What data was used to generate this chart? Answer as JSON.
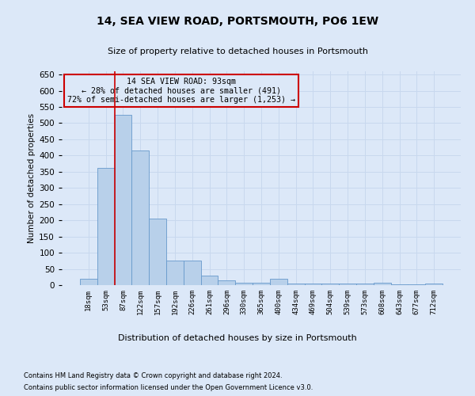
{
  "title": "14, SEA VIEW ROAD, PORTSMOUTH, PO6 1EW",
  "subtitle": "Size of property relative to detached houses in Portsmouth",
  "xlabel": "Distribution of detached houses by size in Portsmouth",
  "ylabel": "Number of detached properties",
  "footnote1": "Contains HM Land Registry data © Crown copyright and database right 2024.",
  "footnote2": "Contains public sector information licensed under the Open Government Licence v3.0.",
  "annotation_line1": "14 SEA VIEW ROAD: 93sqm",
  "annotation_line2": "← 28% of detached houses are smaller (491)",
  "annotation_line3": "72% of semi-detached houses are larger (1,253) →",
  "bar_color": "#b8d0ea",
  "bar_edge_color": "#6699cc",
  "grid_color": "#c8d8ee",
  "background_color": "#dce8f8",
  "vline_color": "#cc0000",
  "categories": [
    "18sqm",
    "53sqm",
    "87sqm",
    "122sqm",
    "157sqm",
    "192sqm",
    "226sqm",
    "261sqm",
    "296sqm",
    "330sqm",
    "365sqm",
    "400sqm",
    "434sqm",
    "469sqm",
    "504sqm",
    "539sqm",
    "573sqm",
    "608sqm",
    "643sqm",
    "677sqm",
    "712sqm"
  ],
  "values": [
    20,
    363,
    525,
    415,
    205,
    75,
    75,
    30,
    15,
    8,
    8,
    20,
    5,
    5,
    5,
    5,
    5,
    8,
    3,
    3,
    5
  ],
  "vline_x": 1.5,
  "ylim": [
    0,
    660
  ],
  "yticks": [
    0,
    50,
    100,
    150,
    200,
    250,
    300,
    350,
    400,
    450,
    500,
    550,
    600,
    650
  ]
}
